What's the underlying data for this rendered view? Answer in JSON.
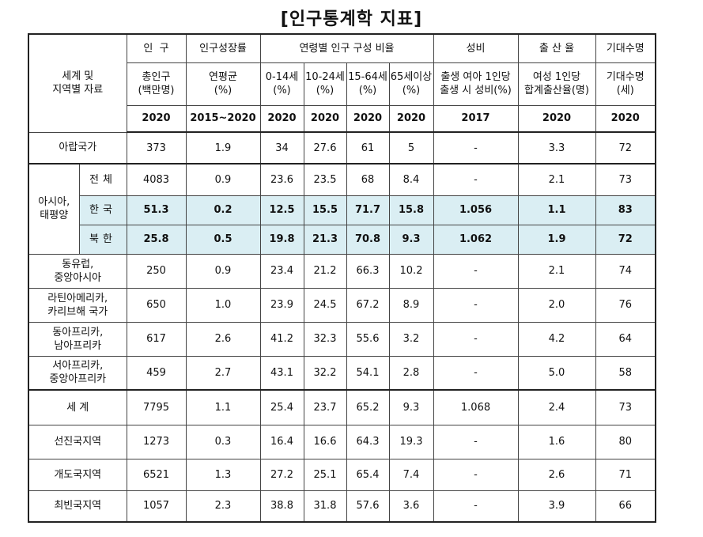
{
  "title": "[인구통계학 지표]",
  "header": {
    "region_label_1": "세계 및",
    "region_label_2": "지역별 자료",
    "groups": {
      "population": "인  구",
      "growth": "인구성장률",
      "age": "연령별 인구 구성 비율",
      "sex_ratio": "성비",
      "birth": "출 산 율",
      "life": "기대수명"
    },
    "sub": {
      "population": [
        "총인구",
        "(백만명)"
      ],
      "growth": [
        "연평균",
        "(%)"
      ],
      "age_0_14": [
        "0-14세",
        "(%)"
      ],
      "age_10_24": [
        "10-24세",
        "(%)"
      ],
      "age_15_64": [
        "15-64세",
        "(%)"
      ],
      "age_65": [
        "65세이상",
        "(%)"
      ],
      "sex_ratio": [
        "출생 여아 1인당",
        "출생 시 성비(%)"
      ],
      "birth": [
        "여성 1인당",
        "합계출산율(명)"
      ],
      "life": [
        "기대수명",
        "(세)"
      ]
    },
    "years": [
      "2020",
      "2015~2020",
      "2020",
      "2020",
      "2020",
      "2020",
      "2017",
      "2020",
      "2020"
    ]
  },
  "asia_group_label": [
    "아시아,",
    "태평양"
  ],
  "rows": [
    {
      "label": [
        "아랍국가"
      ],
      "values": [
        "373",
        "1.9",
        "34",
        "27.6",
        "61",
        "5",
        "-",
        "3.3",
        "72"
      ]
    },
    {
      "sub": "전체",
      "values": [
        "4083",
        "0.9",
        "23.6",
        "23.5",
        "68",
        "8.4",
        "-",
        "2.1",
        "73"
      ]
    },
    {
      "sub": "한국",
      "values": [
        "51.3",
        "0.2",
        "12.5",
        "15.5",
        "71.7",
        "15.8",
        "1.056",
        "1.1",
        "83"
      ]
    },
    {
      "sub": "북한",
      "values": [
        "25.8",
        "0.5",
        "19.8",
        "21.3",
        "70.8",
        "9.3",
        "1.062",
        "1.9",
        "72"
      ]
    },
    {
      "label": [
        "동유럽,",
        "중앙아시아"
      ],
      "values": [
        "250",
        "0.9",
        "23.4",
        "21.2",
        "66.3",
        "10.2",
        "-",
        "2.1",
        "74"
      ]
    },
    {
      "label": [
        "라틴아메리카,",
        "카리브해 국가"
      ],
      "values": [
        "650",
        "1.0",
        "23.9",
        "24.5",
        "67.2",
        "8.9",
        "-",
        "2.0",
        "76"
      ]
    },
    {
      "label": [
        "동아프리카,",
        "남아프리카"
      ],
      "values": [
        "617",
        "2.6",
        "41.2",
        "32.3",
        "55.6",
        "3.2",
        "-",
        "4.2",
        "64"
      ]
    },
    {
      "label": [
        "서아프리카,",
        "중앙아프리카"
      ],
      "values": [
        "459",
        "2.7",
        "43.1",
        "32.2",
        "54.1",
        "2.8",
        "-",
        "5.0",
        "58"
      ]
    },
    {
      "label": [
        "세 계"
      ],
      "values": [
        "7795",
        "1.1",
        "25.4",
        "23.7",
        "65.2",
        "9.3",
        "1.068",
        "2.4",
        "73"
      ]
    },
    {
      "label": [
        "선진국지역"
      ],
      "values": [
        "1273",
        "0.3",
        "16.4",
        "16.6",
        "64.3",
        "19.3",
        "-",
        "1.6",
        "80"
      ]
    },
    {
      "label": [
        "개도국지역"
      ],
      "values": [
        "6521",
        "1.3",
        "27.2",
        "25.1",
        "65.4",
        "7.4",
        "-",
        "2.6",
        "71"
      ]
    },
    {
      "label": [
        "최빈국지역"
      ],
      "values": [
        "1057",
        "2.3",
        "38.8",
        "31.8",
        "57.6",
        "3.6",
        "-",
        "3.9",
        "66"
      ]
    }
  ],
  "highlight_color": "#daeef3"
}
